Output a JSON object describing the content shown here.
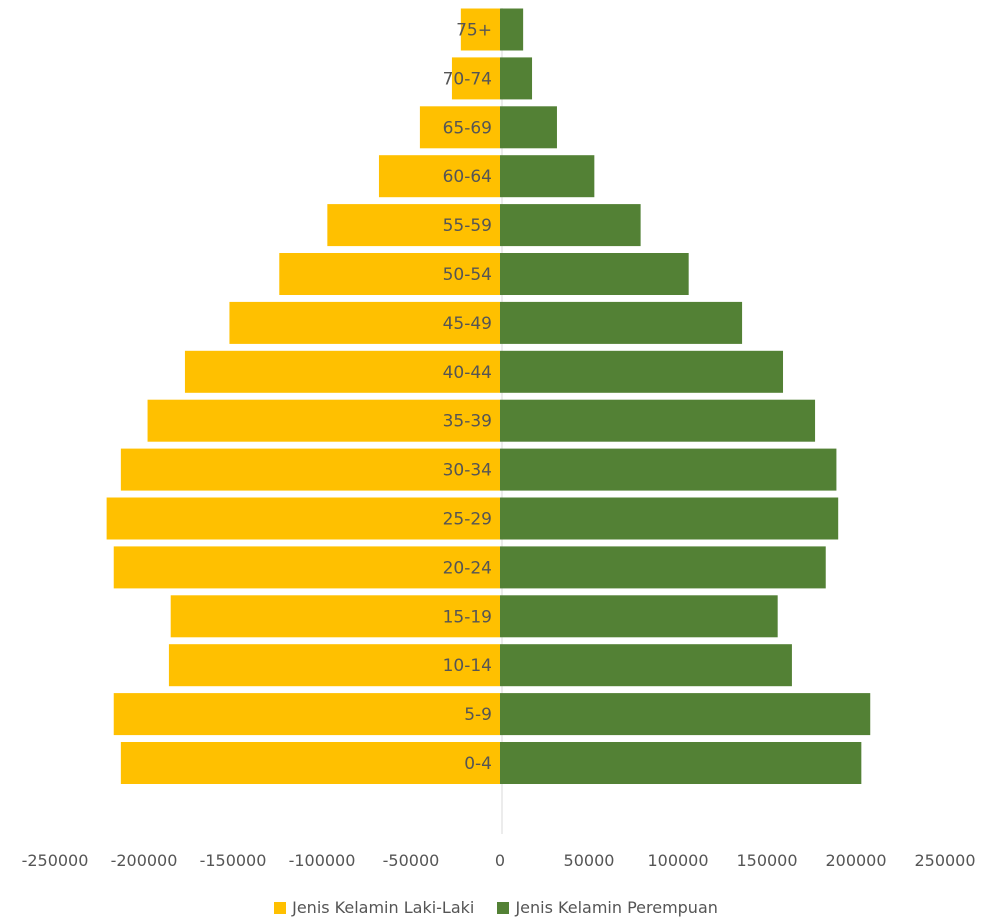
{
  "chart_data": {
    "type": "bar",
    "orientation": "horizontal",
    "categories": [
      "0-4",
      "5-9",
      "10-14",
      "15-19",
      "20-24",
      "25-29",
      "30-34",
      "35-39",
      "40-44",
      "45-49",
      "50-54",
      "55-59",
      "60-64",
      "65-69",
      "70-74",
      "75+"
    ],
    "series": [
      {
        "name": "Jenis Kelamin Laki-Laki",
        "color": "#FFC000",
        "values": [
          -213000,
          -217000,
          -186000,
          -185000,
          -217000,
          -221000,
          -213000,
          -198000,
          -177000,
          -152000,
          -124000,
          -97000,
          -68000,
          -45000,
          -27000,
          -22000
        ]
      },
      {
        "name": "Jenis Kelamin Perempuan",
        "color": "#538135",
        "values": [
          203000,
          208000,
          164000,
          156000,
          183000,
          190000,
          189000,
          177000,
          159000,
          136000,
          106000,
          79000,
          53000,
          32000,
          18000,
          13000
        ]
      }
    ],
    "xlim": [
      -250000,
      250000
    ],
    "x_ticks": [
      "-250000",
      "-200000",
      "-150000",
      "-100000",
      "-50000",
      "0",
      "50000",
      "100000",
      "150000",
      "200000",
      "250000"
    ],
    "title": "",
    "xlabel": "",
    "ylabel": "",
    "grid": false,
    "legend_position": "bottom"
  }
}
